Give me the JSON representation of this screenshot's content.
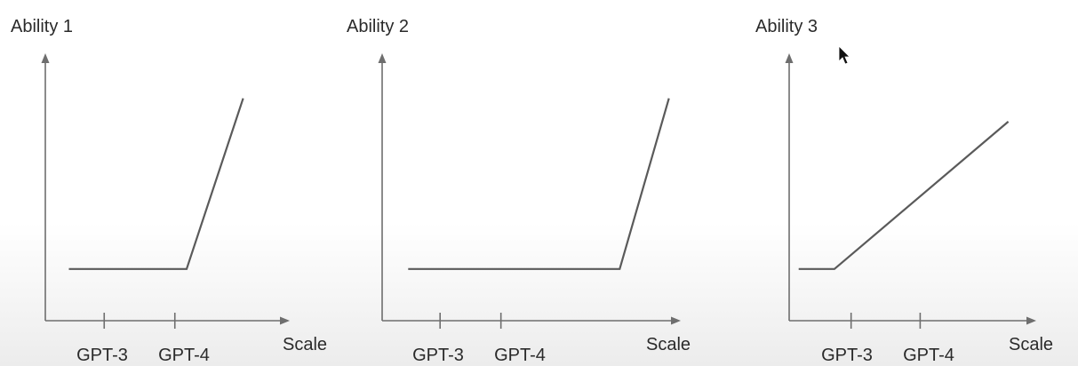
{
  "chart_data": [
    {
      "type": "line",
      "title": "Ability 1",
      "xlabel": "Scale",
      "ylabel": "",
      "x_ticks": [
        "GPT-3",
        "GPT-4"
      ],
      "xlim": [
        0,
        10
      ],
      "ylim": [
        0,
        10
      ],
      "series": [
        {
          "x": [
            1.0,
            6.0,
            8.4
          ],
          "y": [
            2.0,
            2.0,
            8.6
          ]
        }
      ],
      "tick_positions": [
        2.5,
        5.5
      ],
      "grid": false
    },
    {
      "type": "line",
      "title": "Ability 2",
      "xlabel": "Scale",
      "ylabel": "",
      "x_ticks": [
        "GPT-3",
        "GPT-4"
      ],
      "xlim": [
        0,
        10
      ],
      "ylim": [
        0,
        10
      ],
      "series": [
        {
          "x": [
            0.9,
            8.2,
            9.9
          ],
          "y": [
            2.0,
            2.0,
            8.6
          ]
        }
      ],
      "tick_positions": [
        2.0,
        4.1
      ],
      "grid": false
    },
    {
      "type": "line",
      "title": "Ability 3",
      "xlabel": "Scale",
      "ylabel": "",
      "x_ticks": [
        "GPT-3",
        "GPT-4"
      ],
      "xlim": [
        0,
        10
      ],
      "ylim": [
        0,
        10
      ],
      "series": [
        {
          "x": [
            0.4,
            1.9,
            9.2
          ],
          "y": [
            2.0,
            2.0,
            7.7
          ]
        }
      ],
      "tick_positions": [
        2.6,
        5.5
      ],
      "grid": false
    }
  ],
  "cursor_icon": "mouse-pointer-icon",
  "colors": {
    "axis": "#6e6e6e",
    "line": "#5a5a5a",
    "text": "#2a2a2a"
  }
}
